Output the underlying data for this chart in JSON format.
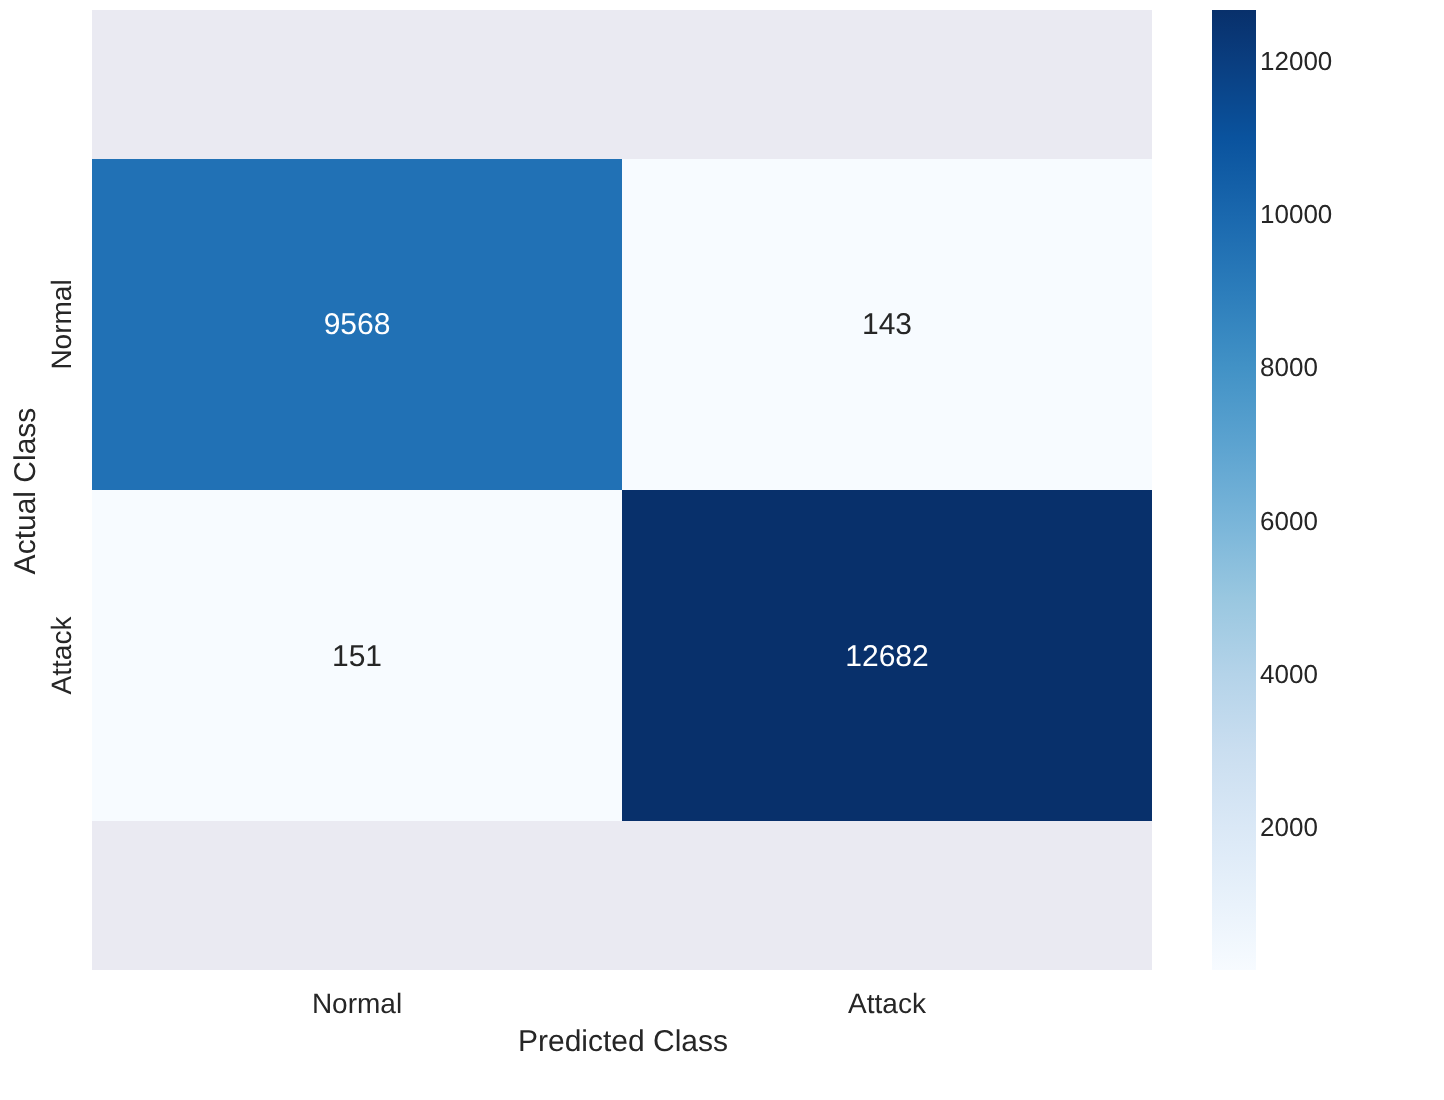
{
  "chart_data": {
    "type": "heatmap",
    "xlabel": "Predicted Class",
    "ylabel": "Actual Class",
    "categories": [
      "Normal",
      "Attack"
    ],
    "y_categories": [
      "Normal",
      "Attack"
    ],
    "cells": [
      [
        9568,
        143
      ],
      [
        151,
        12682
      ]
    ],
    "clim": [
      143,
      12682
    ],
    "cticks": [
      2000,
      4000,
      6000,
      8000,
      10000,
      12000
    ],
    "data_labels": true,
    "grid": false
  }
}
